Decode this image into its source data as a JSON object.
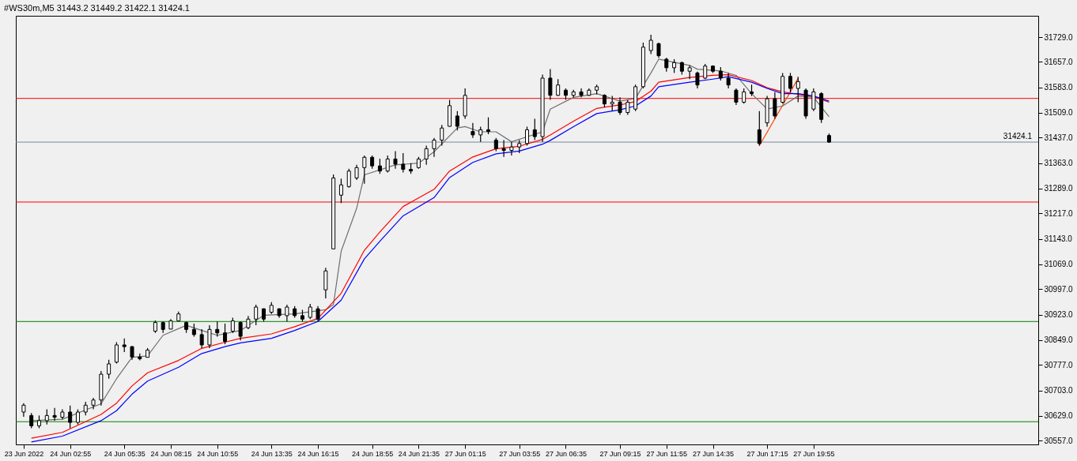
{
  "chart_data": {
    "type": "candlestick",
    "title": "#WS30m,M5  31443.2 31449.2 31422.1 31424.1",
    "categories": [
      "23 Jun 2022",
      null,
      null,
      null,
      null,
      null,
      "24 Jun 02:55",
      null,
      null,
      null,
      null,
      null,
      null,
      "24 Jun 05:35",
      null,
      null,
      null,
      null,
      null,
      "24 Jun 08:15",
      null,
      null,
      null,
      null,
      null,
      "24 Jun 10:55",
      null,
      null,
      null,
      null,
      null,
      null,
      "24 Jun 13:35",
      null,
      null,
      null,
      null,
      null,
      "24 Jun 16:15",
      null,
      null,
      null,
      null,
      null,
      null,
      "24 Jun 18:55",
      null,
      null,
      null,
      null,
      null,
      "24 Jun 21:35",
      null,
      null,
      null,
      null,
      null,
      "27 Jun 01:15",
      null,
      null,
      null,
      null,
      null,
      null,
      "27 Jun 03:55",
      null,
      null,
      null,
      null,
      null,
      "27 Jun 06:35",
      null,
      null,
      null,
      null,
      null,
      null,
      "27 Jun 09:15",
      null,
      null,
      null,
      null,
      null,
      "27 Jun 11:55",
      null,
      null,
      null,
      null,
      null,
      "27 Jun 14:35",
      null,
      null,
      null,
      null,
      null,
      null,
      "27 Jun 17:15",
      null,
      null,
      null,
      null,
      null,
      "27 Jun 19:55",
      null,
      null,
      null,
      null,
      null,
      null,
      null,
      null,
      null,
      null,
      null,
      null,
      null,
      null,
      null,
      null,
      null,
      null,
      null,
      null,
      null,
      null,
      null,
      null,
      null,
      null,
      null,
      null
    ],
    "ohlc": [
      [
        30640,
        30666,
        30626,
        30660
      ],
      [
        30630,
        30637,
        30593,
        30600
      ],
      [
        30600,
        30630,
        30593,
        30615
      ],
      [
        30615,
        30648,
        30604,
        30630
      ],
      [
        30630,
        30652,
        30615,
        30625
      ],
      [
        30625,
        30648,
        30619,
        30640
      ],
      [
        30640,
        30659,
        30593,
        30610
      ],
      [
        30610,
        30648,
        30604,
        30640
      ],
      [
        30640,
        30670,
        30630,
        30660
      ],
      [
        30660,
        30681,
        30648,
        30675
      ],
      [
        30675,
        30759,
        30659,
        30750
      ],
      [
        30750,
        30792,
        30737,
        30780
      ],
      [
        30785,
        30843,
        30781,
        30835
      ],
      [
        30835,
        30854,
        30814,
        30830
      ],
      [
        30830,
        30832,
        30792,
        30800
      ],
      [
        30800,
        30810,
        30790,
        30795
      ],
      [
        30799,
        30826,
        30799,
        30820
      ],
      [
        30875,
        30906,
        30870,
        30900
      ],
      [
        30900,
        30903,
        30870,
        30880
      ],
      [
        30881,
        30910,
        30881,
        30905
      ],
      [
        30905,
        30932,
        30903,
        30925
      ],
      [
        30900,
        30903,
        30870,
        30880
      ],
      [
        30880,
        30897,
        30859,
        30865
      ],
      [
        30865,
        30881,
        30826,
        30835
      ],
      [
        30835,
        30892,
        30826,
        30880
      ],
      [
        30880,
        30903,
        30859,
        30870
      ],
      [
        30870,
        30897,
        30837,
        30845
      ],
      [
        30875,
        30914,
        30870,
        30905
      ],
      [
        30900,
        30903,
        30848,
        30860
      ],
      [
        30885,
        30919,
        30881,
        30910
      ],
      [
        30910,
        30952,
        30892,
        30945
      ],
      [
        30940,
        30941,
        30903,
        30910
      ],
      [
        30930,
        30959,
        30925,
        30950
      ],
      [
        30940,
        30941,
        30914,
        30920
      ],
      [
        30920,
        30952,
        30903,
        30945
      ],
      [
        30940,
        30948,
        30914,
        30920
      ],
      [
        30920,
        30937,
        30903,
        30910
      ],
      [
        30915,
        30954,
        30910,
        30945
      ],
      [
        30940,
        30948,
        30903,
        30910
      ],
      [
        30995,
        31059,
        30970,
        31050
      ],
      [
        31114,
        31330,
        31114,
        31320
      ],
      [
        31270,
        31318,
        31247,
        31300
      ],
      [
        31295,
        31347,
        31292,
        31340
      ],
      [
        31320,
        31358,
        31314,
        31350
      ],
      [
        31350,
        31385,
        31303,
        31380
      ],
      [
        31380,
        31385,
        31347,
        31355
      ],
      [
        31355,
        31376,
        31332,
        31340
      ],
      [
        31340,
        31385,
        31336,
        31375
      ],
      [
        31375,
        31398,
        31347,
        31360
      ],
      [
        31360,
        31392,
        31336,
        31345
      ],
      [
        31345,
        31363,
        31332,
        31340
      ],
      [
        31350,
        31381,
        31347,
        31375
      ],
      [
        31375,
        31414,
        31358,
        31405
      ],
      [
        31405,
        31436,
        31381,
        31430
      ],
      [
        31430,
        31474,
        31414,
        31465
      ],
      [
        31470,
        31547,
        31469,
        31530
      ],
      [
        31500,
        31514,
        31458,
        31470
      ],
      [
        31500,
        31580,
        31492,
        31560
      ],
      [
        31455,
        31480,
        31436,
        31445
      ],
      [
        31445,
        31469,
        31425,
        31460
      ],
      [
        31460,
        31496,
        31447,
        31455
      ],
      [
        31430,
        31436,
        31398,
        31405
      ],
      [
        31405,
        31430,
        31381,
        31400
      ],
      [
        31400,
        31425,
        31385,
        31410
      ],
      [
        31410,
        31430,
        31392,
        31420
      ],
      [
        31420,
        31469,
        31414,
        31460
      ],
      [
        31460,
        31492,
        31430,
        31440
      ],
      [
        31440,
        31620,
        31425,
        31610
      ],
      [
        31610,
        31636,
        31547,
        31560
      ],
      [
        31560,
        31607,
        31558,
        31590
      ],
      [
        31575,
        31580,
        31547,
        31560
      ],
      [
        31560,
        31576,
        31554,
        31570
      ],
      [
        31570,
        31580,
        31554,
        31560
      ],
      [
        31560,
        31580,
        31558,
        31575
      ],
      [
        31575,
        31591,
        31563,
        31585
      ],
      [
        31560,
        31563,
        31525,
        31535
      ],
      [
        31535,
        31558,
        31514,
        31540
      ],
      [
        31540,
        31554,
        31503,
        31510
      ],
      [
        31510,
        31547,
        31503,
        31540
      ],
      [
        31520,
        31591,
        31514,
        31585
      ],
      [
        31585,
        31713,
        31580,
        31700
      ],
      [
        31690,
        31736,
        31680,
        31720
      ],
      [
        31710,
        31713,
        31669,
        31675
      ],
      [
        31665,
        31669,
        31629,
        31640
      ],
      [
        31640,
        31665,
        31625,
        31655
      ],
      [
        31655,
        31658,
        31620,
        31630
      ],
      [
        31630,
        31647,
        31607,
        31640
      ],
      [
        31625,
        31629,
        31580,
        31590
      ],
      [
        31610,
        31651,
        31607,
        31645
      ],
      [
        31645,
        31647,
        31625,
        31630
      ],
      [
        31630,
        31642,
        31603,
        31610
      ],
      [
        31610,
        31625,
        31580,
        31590
      ],
      [
        31575,
        31580,
        31532,
        31540
      ],
      [
        31540,
        31580,
        31536,
        31570
      ],
      [
        31570,
        31591,
        31558,
        31565
      ],
      [
        31460,
        31514,
        31414,
        31420
      ],
      [
        31480,
        31558,
        31469,
        31550
      ],
      [
        31550,
        31569,
        31492,
        31500
      ],
      [
        31540,
        31625,
        31536,
        31615
      ],
      [
        31615,
        31625,
        31569,
        31580
      ],
      [
        31580,
        31614,
        31540,
        31600
      ],
      [
        31575,
        31580,
        31492,
        31500
      ],
      [
        31520,
        31580,
        31514,
        31570
      ],
      [
        31565,
        31569,
        31480,
        31490
      ],
      [
        31443.2,
        31449.2,
        31422.1,
        31424.1
      ],
      null,
      null,
      null,
      null,
      null,
      null,
      null,
      null,
      null,
      null,
      null,
      null,
      null,
      null,
      null,
      null,
      null,
      null,
      null,
      null,
      null,
      null,
      null,
      null,
      null,
      null
    ],
    "series": [
      {
        "type": "line",
        "color": "#0000ff",
        "values": [
          null,
          30553,
          null,
          null,
          null,
          30570,
          null,
          null,
          null,
          null,
          30615,
          null,
          30644,
          null,
          30692,
          null,
          30730,
          null,
          null,
          null,
          30770,
          null,
          null,
          30810,
          null,
          null,
          30830,
          null,
          30841,
          null,
          null,
          null,
          30854,
          null,
          null,
          30877,
          null,
          null,
          30903,
          null,
          null,
          30965,
          null,
          null,
          31085,
          null,
          31136,
          null,
          null,
          31210,
          null,
          null,
          null,
          31263,
          null,
          31321,
          null,
          null,
          31365,
          null,
          null,
          31390,
          null,
          null,
          31398,
          null,
          null,
          31418,
          31429,
          null,
          null,
          31469,
          null,
          null,
          31507,
          null,
          null,
          31518,
          null,
          31529,
          null,
          31558,
          31585,
          null,
          null,
          null,
          31598,
          null,
          null,
          31607,
          null,
          31614,
          null,
          null,
          31598,
          null,
          31580,
          null,
          31565,
          null,
          31565,
          null,
          31558,
          null,
          31543,
          null,
          null,
          null,
          null,
          null,
          null,
          null,
          null,
          null,
          null,
          null,
          null,
          null,
          null,
          null,
          null,
          null,
          null,
          null,
          null,
          null,
          null,
          null,
          null,
          null,
          null
        ]
      },
      {
        "type": "line",
        "color": "#ff0000",
        "values": [
          null,
          30564,
          null,
          null,
          null,
          30581,
          null,
          null,
          null,
          null,
          30633,
          null,
          30666,
          null,
          30716,
          null,
          30754,
          null,
          null,
          null,
          30790,
          null,
          null,
          30825,
          null,
          null,
          30843,
          null,
          30854,
          null,
          null,
          null,
          30867,
          null,
          null,
          30888,
          null,
          null,
          30912,
          null,
          null,
          30985,
          null,
          null,
          31110,
          null,
          31163,
          null,
          null,
          31237,
          null,
          null,
          null,
          31287,
          null,
          31340,
          null,
          null,
          31381,
          null,
          null,
          31405,
          null,
          null,
          31412,
          null,
          null,
          31432,
          31445,
          null,
          null,
          31485,
          null,
          null,
          31522,
          null,
          null,
          31532,
          null,
          31542,
          null,
          31572,
          31598,
          null,
          null,
          null,
          31612,
          null,
          null,
          31618,
          null,
          31620,
          null,
          null,
          31603,
          null,
          31582,
          null,
          31570,
          null,
          31563,
          null,
          31556,
          null,
          31540,
          null,
          null,
          null,
          null,
          null,
          null,
          null,
          null,
          null,
          null,
          null,
          null,
          null,
          null,
          null,
          null,
          null,
          null,
          null,
          null,
          null,
          null,
          null,
          null,
          null,
          null
        ]
      },
      {
        "type": "line",
        "color": "#707070",
        "values": [
          null,
          30615,
          null,
          null,
          null,
          30619,
          null,
          null,
          null,
          null,
          30664,
          null,
          30737,
          null,
          30799,
          null,
          30803,
          null,
          30863,
          null,
          null,
          30892,
          null,
          30877,
          null,
          30863,
          null,
          null,
          30877,
          null,
          null,
          30921,
          null,
          null,
          null,
          30925,
          null,
          null,
          null,
          30937,
          30952,
          31107,
          null,
          31232,
          31329,
          null,
          null,
          null,
          31358,
          null,
          null,
          31363,
          null,
          31396,
          null,
          null,
          31465,
          31469,
          null,
          31454,
          null,
          31454,
          null,
          31425,
          null,
          null,
          null,
          31454,
          31520,
          null,
          null,
          31554,
          null,
          null,
          31565,
          null,
          null,
          31543,
          null,
          31551,
          null,
          31625,
          31665,
          null,
          null,
          null,
          31647,
          31636,
          null,
          null,
          31631,
          null,
          31618,
          null,
          31565,
          null,
          31520,
          null,
          31529,
          null,
          31558,
          null,
          31554,
          null,
          31498,
          null,
          null,
          null,
          null,
          null,
          null,
          null,
          null,
          null,
          null,
          null,
          null,
          null,
          null,
          null,
          null,
          null,
          null,
          null,
          null,
          null,
          null,
          null,
          null,
          null,
          null
        ]
      },
      {
        "type": "line",
        "color": "#ff4500",
        "values": [
          null,
          null,
          null,
          null,
          null,
          null,
          null,
          null,
          null,
          null,
          null,
          null,
          null,
          null,
          null,
          null,
          null,
          null,
          null,
          null,
          null,
          null,
          null,
          null,
          null,
          null,
          null,
          null,
          null,
          null,
          null,
          null,
          null,
          null,
          null,
          null,
          null,
          null,
          null,
          null,
          null,
          null,
          null,
          null,
          null,
          null,
          null,
          null,
          null,
          null,
          null,
          null,
          null,
          null,
          null,
          null,
          null,
          null,
          null,
          null,
          null,
          null,
          null,
          null,
          null,
          null,
          null,
          null,
          null,
          null,
          null,
          null,
          null,
          null,
          null,
          null,
          null,
          null,
          null,
          null,
          null,
          null,
          null,
          null,
          null,
          null,
          null,
          null,
          null,
          null,
          null,
          null,
          null,
          null,
          null,
          31414,
          null,
          null,
          null,
          null,
          31609,
          null,
          null,
          null,
          null,
          null,
          null,
          null,
          null,
          null,
          null,
          null,
          null,
          null,
          null,
          null,
          null,
          null,
          null,
          null,
          null,
          null,
          null,
          null,
          null,
          null,
          null,
          null,
          null,
          null,
          null
        ]
      }
    ],
    "ref_lines": [
      {
        "axis": "y",
        "value": 31551,
        "color": "#ff0000"
      },
      {
        "axis": "y",
        "value": 31424.1,
        "color": "#778899",
        "label": "31424.1"
      },
      {
        "axis": "y",
        "value": 31250,
        "color": "#ff0000"
      },
      {
        "axis": "y",
        "value": 30903,
        "color": "#008000"
      },
      {
        "axis": "y",
        "value": 30612,
        "color": "#008000"
      }
    ],
    "ylim": [
      30546,
      31791
    ],
    "yticks": [
      {
        "value": 30557,
        "label": "30557.0"
      },
      {
        "value": 30629,
        "label": "30629.0"
      },
      {
        "value": 30703,
        "label": "30703.0"
      },
      {
        "value": 30777,
        "label": "30777.0"
      },
      {
        "value": 30849,
        "label": "30849.0"
      },
      {
        "value": 30923,
        "label": "30923.0"
      },
      {
        "value": 30997,
        "label": "30997.0"
      },
      {
        "value": 31069,
        "label": "31069.0"
      },
      {
        "value": 31143,
        "label": "31143.0"
      },
      {
        "value": 31217,
        "label": "31217.0"
      },
      {
        "value": 31289,
        "label": "31289.0"
      },
      {
        "value": 31363,
        "label": "31363.0"
      },
      {
        "value": 31437,
        "label": "31437.0"
      },
      {
        "value": 31509,
        "label": "31509.0"
      },
      {
        "value": 31583,
        "label": "31583.0"
      },
      {
        "value": 31657,
        "label": "31657.0"
      },
      {
        "value": 31729,
        "label": "31729.0"
      }
    ],
    "grid": false
  }
}
